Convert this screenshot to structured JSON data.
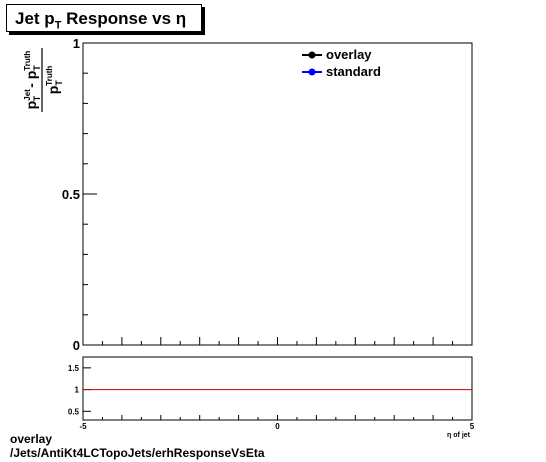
{
  "chart_data": [
    {
      "type": "line",
      "title_prefix": "Jet p",
      "title_sub": "T",
      "title_suffix": " Response vs  η",
      "ylabel_num_a": "p",
      "ylabel_num_a_sup": "Jet",
      "ylabel_num_a_sub": "T",
      "ylabel_num_minus": " - p",
      "ylabel_num_b_sup": "Truth",
      "ylabel_num_b_sub": "T",
      "ylabel_den": "p",
      "ylabel_den_sup": "Truth",
      "ylabel_den_sub": "T",
      "ylim": [
        0,
        1
      ],
      "yticks": [
        {
          "value": 0,
          "label": "0"
        },
        {
          "value": 0.5,
          "label": "0.5"
        },
        {
          "value": 1,
          "label": "1"
        }
      ],
      "legend_position": "top-right",
      "series": [
        {
          "name": "overlay",
          "color": "#000000",
          "x": [],
          "y": []
        },
        {
          "name": "standard",
          "color": "#0000ff",
          "x": [],
          "y": []
        }
      ]
    },
    {
      "type": "line",
      "xlim": [
        -5,
        5
      ],
      "ylim": [
        0.3,
        1.75
      ],
      "xticks": [
        {
          "value": -5,
          "label": "-5"
        },
        {
          "value": 0,
          "label": "0"
        },
        {
          "value": 5,
          "label": "5"
        }
      ],
      "yticks": [
        {
          "value": 0.5,
          "label": "0.5"
        },
        {
          "value": 1,
          "label": "1"
        },
        {
          "value": 1.5,
          "label": "1.5"
        }
      ],
      "xlabel": "η of jet",
      "reference_line": {
        "y": 1,
        "color": "#cc0000"
      }
    }
  ],
  "footer": {
    "line1": "overlay",
    "line2": "/Jets/AntiKt4LCTopoJets/erhResponseVsEta"
  }
}
